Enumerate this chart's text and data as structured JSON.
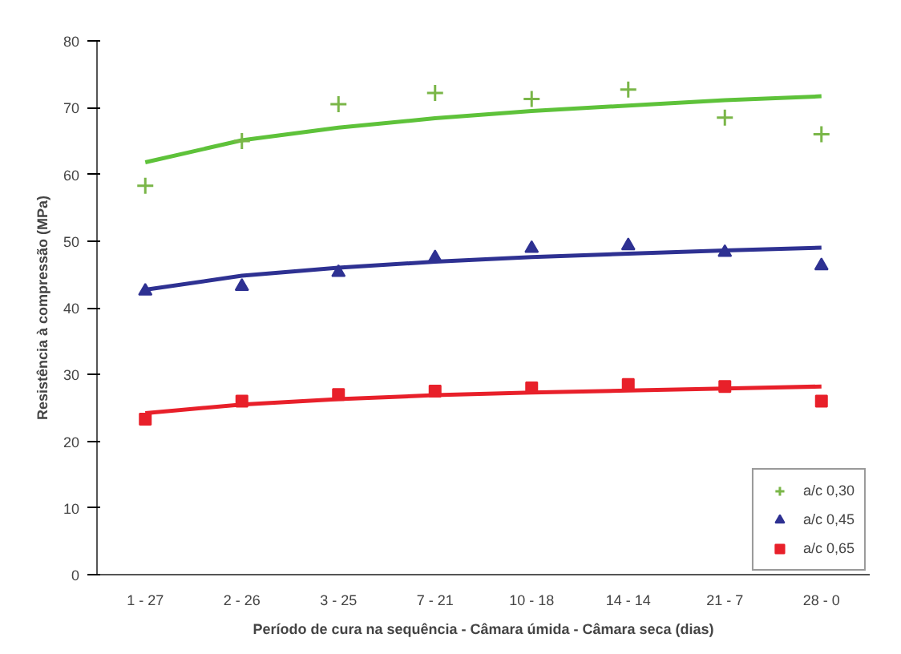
{
  "chart_data": {
    "type": "scatter",
    "xlabel": "Período de cura na sequência - Câmara úmida - Câmara seca (dias)",
    "ylabel": "Resistência à compressão (MPa)",
    "categories": [
      "1 - 27",
      "2 - 26",
      "3 - 25",
      "7 - 21",
      "10 - 18",
      "14 - 14",
      "21 - 7",
      "28 - 0"
    ],
    "ylim": [
      0,
      80
    ],
    "yticks": [
      0,
      10,
      20,
      30,
      40,
      50,
      60,
      70,
      80
    ],
    "grid": false,
    "legend": "bottom right",
    "series": [
      {
        "name": "a/c 0,30",
        "marker": "cross",
        "color": "#7ab648",
        "values": [
          58.3,
          65,
          70.5,
          72.2,
          71.3,
          72.7,
          68.5,
          66
        ]
      },
      {
        "name": "a/c 0,45",
        "marker": "triangle",
        "color": "#2e3192",
        "values": [
          42.5,
          43.2,
          45.3,
          47.5,
          48.9,
          49.3,
          48.3,
          46.3
        ]
      },
      {
        "name": "a/c 0,65",
        "marker": "square",
        "color": "#e8202a",
        "values": [
          23.3,
          26,
          27,
          27.5,
          28,
          28.5,
          28.2,
          26
        ]
      },
      {
        "type": "line",
        "color": "#5ec23a",
        "values": [
          61.8,
          65.1,
          67.0,
          68.4,
          69.5,
          70.3,
          71.1,
          71.7
        ]
      },
      {
        "type": "line",
        "color": "#2e3192",
        "values": [
          42.7,
          44.8,
          46.0,
          46.9,
          47.6,
          48.1,
          48.6,
          49.0
        ]
      },
      {
        "type": "line",
        "color": "#e8202a",
        "values": [
          24.2,
          25.5,
          26.3,
          26.9,
          27.3,
          27.6,
          27.9,
          28.2
        ]
      }
    ]
  }
}
